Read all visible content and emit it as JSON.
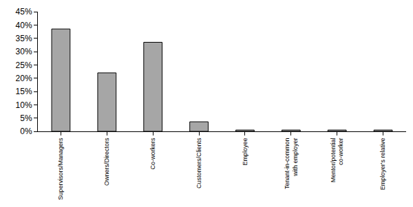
{
  "chart_data": {
    "type": "bar",
    "categories": [
      "Supervisors/Managers",
      "Owners/Directors",
      "Co-workers",
      "Customers/Clients",
      "Employee",
      "Tenant-in-common with employer",
      "Mentor/potential co-worker",
      "Employer's relative"
    ],
    "values": [
      38.5,
      22,
      33.5,
      3.6,
      0.5,
      0.5,
      0.5,
      0.5
    ],
    "color": "#a6a6a6",
    "ylim": [
      0,
      45
    ],
    "yticks": [
      {
        "value": 0,
        "label": "0%"
      },
      {
        "value": 5,
        "label": "5%"
      },
      {
        "value": 10,
        "label": "10%"
      },
      {
        "value": 15,
        "label": "15%"
      },
      {
        "value": 20,
        "label": "20%"
      },
      {
        "value": 25,
        "label": "25%"
      },
      {
        "value": 30,
        "label": "30%"
      },
      {
        "value": 35,
        "label": "35%"
      },
      {
        "value": 40,
        "label": "40%"
      },
      {
        "value": 45,
        "label": "45%"
      }
    ],
    "grid": false
  }
}
